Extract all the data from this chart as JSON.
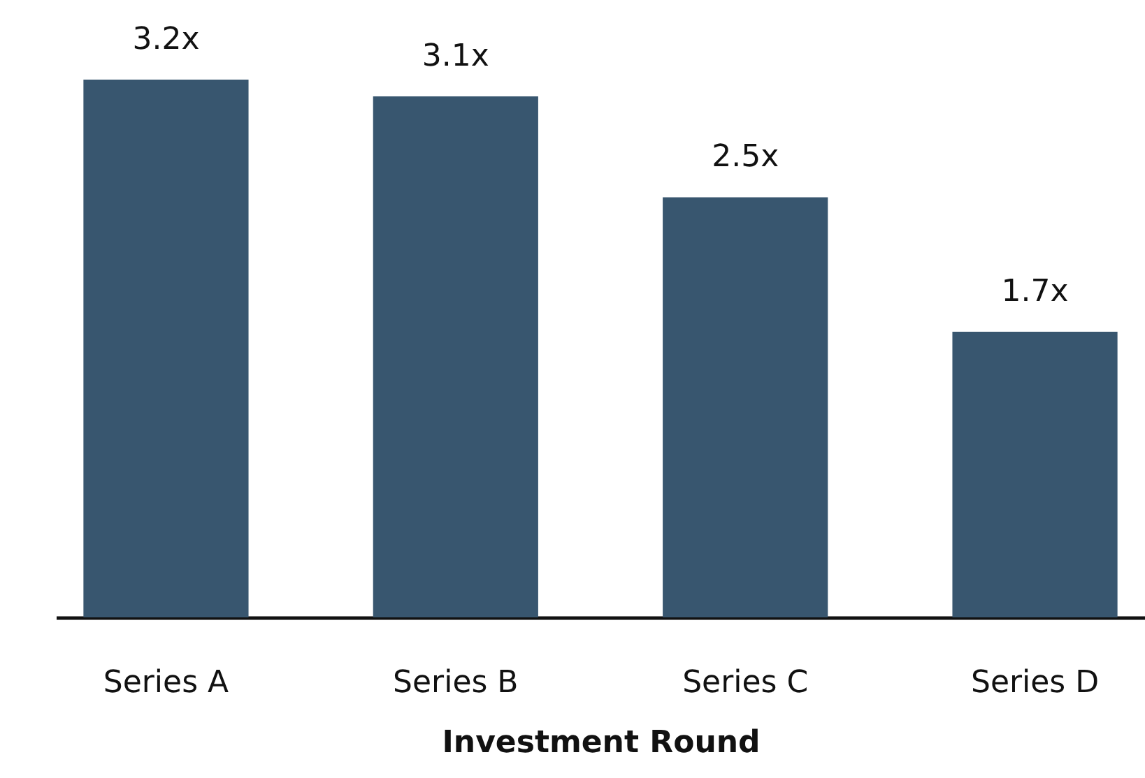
{
  "chart_data": {
    "type": "bar",
    "xlabel": "Investment Round",
    "categories": [
      "Series A",
      "Series B",
      "Series C",
      "Series D"
    ],
    "values": [
      3.2,
      3.1,
      2.5,
      1.7
    ],
    "value_labels": [
      "3.2x",
      "3.1x",
      "2.5x",
      "1.7x"
    ],
    "color": "#38566f",
    "grid": false
  }
}
